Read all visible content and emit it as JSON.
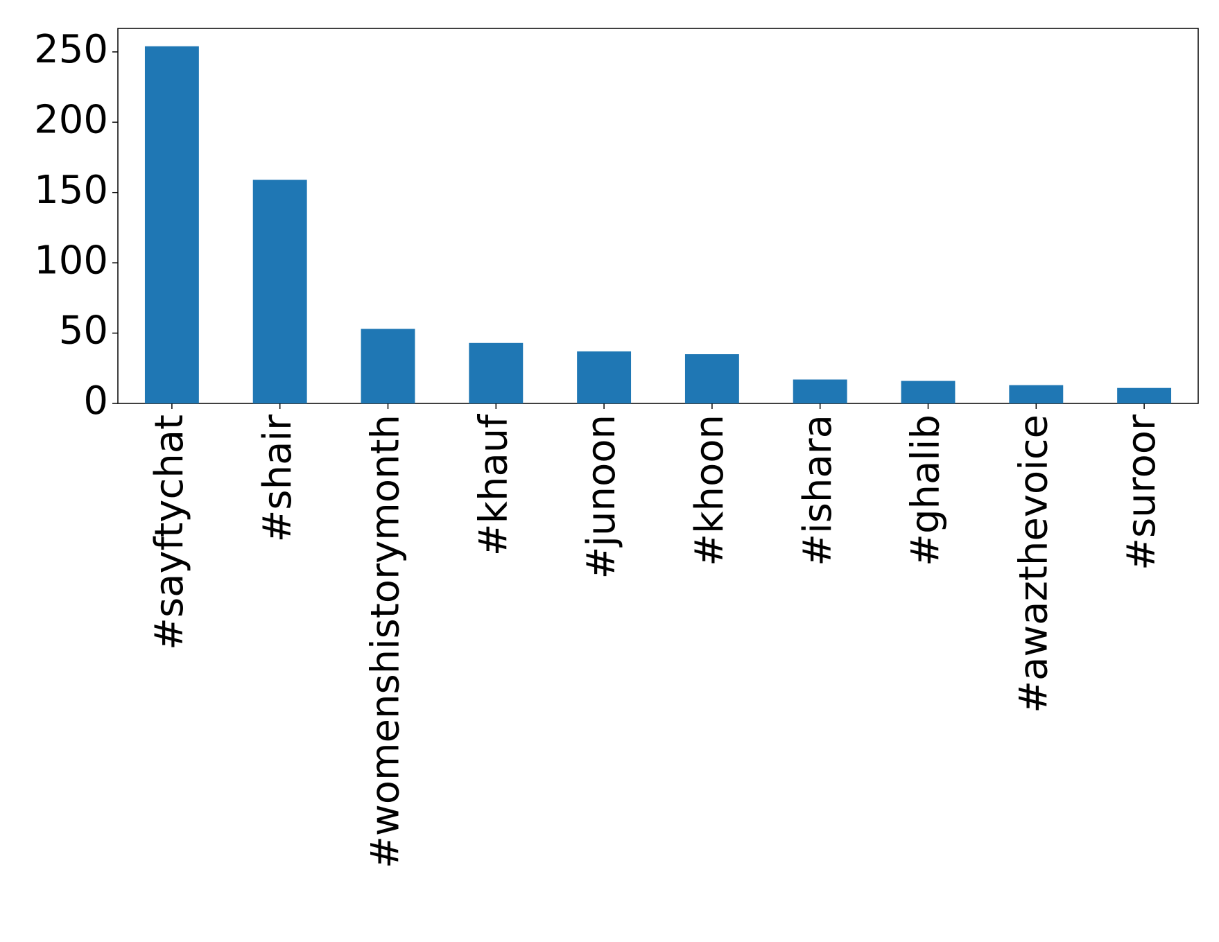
{
  "chart_data": {
    "type": "bar",
    "categories": [
      "#sayftychat",
      "#shair",
      "#womenshistorymonth",
      "#khauf",
      "#junoon",
      "#khoon",
      "#ishara",
      "#ghalib",
      "#awazthevoice",
      "#suroor"
    ],
    "values": [
      254,
      159,
      53,
      43,
      37,
      35,
      17,
      16,
      13,
      11
    ],
    "color": "#1f77b4",
    "ylim": [
      0,
      266.7
    ],
    "yticks": [
      0,
      50,
      100,
      150,
      200,
      250
    ],
    "grid": false
  }
}
